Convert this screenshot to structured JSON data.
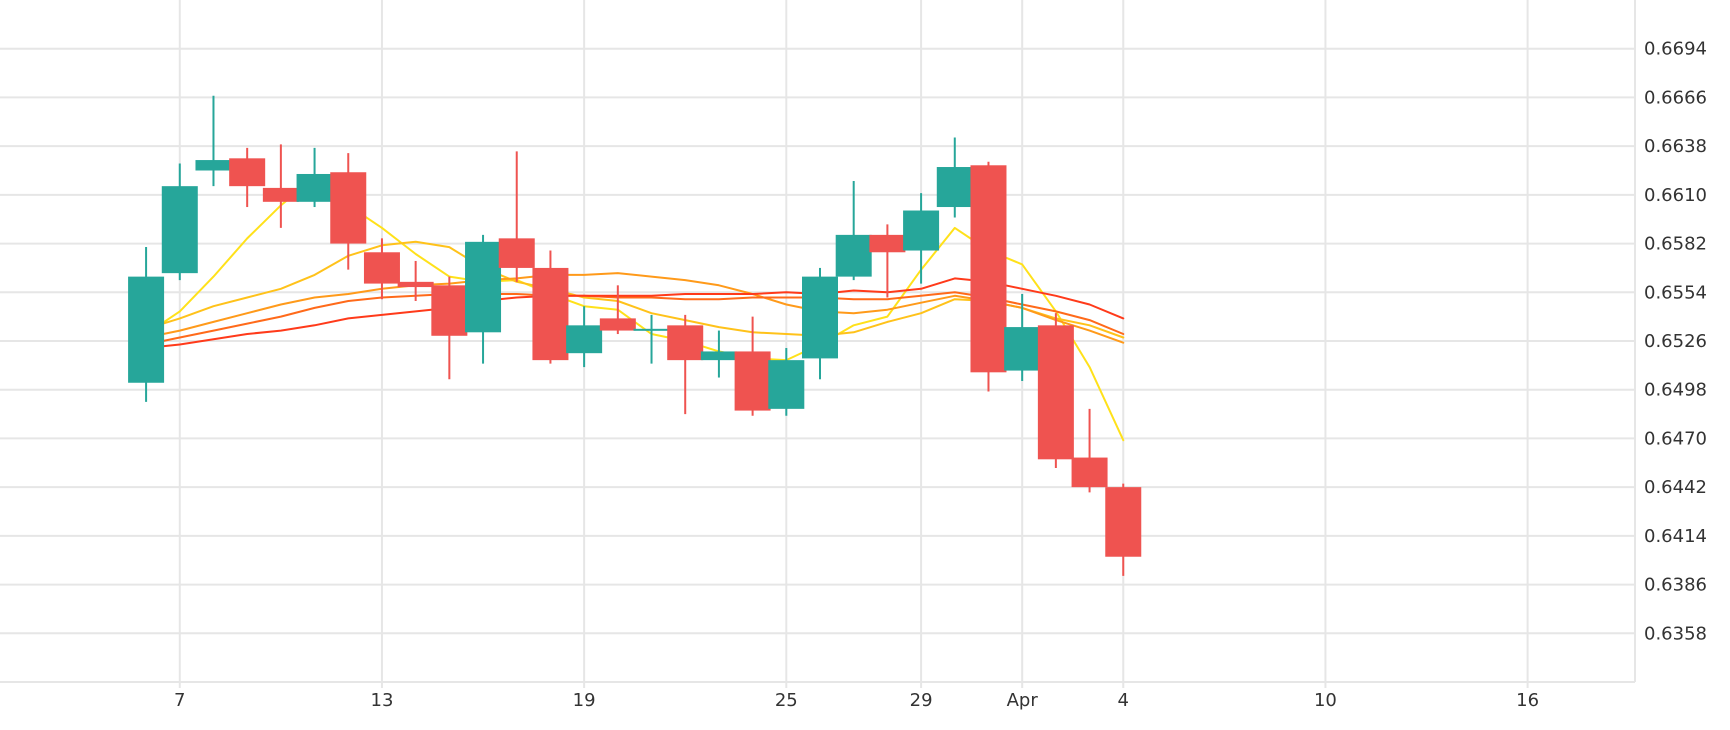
{
  "chart_data": {
    "type": "candlestick",
    "title": "",
    "xlabel": "",
    "ylabel": "",
    "ylim": [
      0.633,
      0.6722
    ],
    "grid": true,
    "y_ticks": [
      0.6358,
      0.6386,
      0.6414,
      0.6442,
      0.647,
      0.6498,
      0.6526,
      0.6554,
      0.6582,
      0.661,
      0.6638,
      0.6666,
      0.6694
    ],
    "y_tick_labels": [
      "0.6358",
      "0.6386",
      "0.6414",
      "0.6442",
      "0.6470",
      "0.6498",
      "0.6526",
      "0.6554",
      "0.6582",
      "0.6610",
      "0.6638",
      "0.6666",
      "0.6694"
    ],
    "x_ticks": [
      {
        "date": "2024-03-07",
        "label": "7"
      },
      {
        "date": "2024-03-13",
        "label": "13"
      },
      {
        "date": "2024-03-19",
        "label": "19"
      },
      {
        "date": "2024-03-25",
        "label": "25"
      },
      {
        "date": "2024-03-29",
        "label": "29"
      },
      {
        "date": "2024-04-01",
        "label": "Apr"
      },
      {
        "date": "2024-04-04",
        "label": "4"
      },
      {
        "date": "2024-04-10",
        "label": "10"
      },
      {
        "date": "2024-04-16",
        "label": "16"
      }
    ],
    "x_range": [
      "2024-03-03",
      "2024-04-18"
    ],
    "colors": {
      "up": "#26a69a",
      "down": "#ef5350",
      "grid": "#e6e6e6"
    },
    "candles": [
      {
        "date": "2024-03-06",
        "open": 0.6502,
        "high": 0.658,
        "low": 0.6491,
        "close": 0.6563
      },
      {
        "date": "2024-03-07",
        "open": 0.6565,
        "high": 0.6628,
        "low": 0.6561,
        "close": 0.6615
      },
      {
        "date": "2024-03-08",
        "open": 0.6624,
        "high": 0.6667,
        "low": 0.6615,
        "close": 0.663
      },
      {
        "date": "2024-03-09",
        "open": 0.6631,
        "high": 0.6637,
        "low": 0.6603,
        "close": 0.6615
      },
      {
        "date": "2024-03-10",
        "open": 0.6614,
        "high": 0.6639,
        "low": 0.6591,
        "close": 0.6606
      },
      {
        "date": "2024-03-11",
        "open": 0.6606,
        "high": 0.6637,
        "low": 0.6603,
        "close": 0.6622
      },
      {
        "date": "2024-03-12",
        "open": 0.6623,
        "high": 0.6634,
        "low": 0.6567,
        "close": 0.6582
      },
      {
        "date": "2024-03-13",
        "open": 0.6577,
        "high": 0.6585,
        "low": 0.655,
        "close": 0.6559
      },
      {
        "date": "2024-03-14",
        "open": 0.656,
        "high": 0.6572,
        "low": 0.6549,
        "close": 0.6557
      },
      {
        "date": "2024-03-15",
        "open": 0.6558,
        "high": 0.6563,
        "low": 0.6504,
        "close": 0.6529
      },
      {
        "date": "2024-03-16",
        "open": 0.6531,
        "high": 0.6587,
        "low": 0.6513,
        "close": 0.6583
      },
      {
        "date": "2024-03-17",
        "open": 0.6585,
        "high": 0.6635,
        "low": 0.656,
        "close": 0.6568
      },
      {
        "date": "2024-03-18",
        "open": 0.6568,
        "high": 0.6578,
        "low": 0.6513,
        "close": 0.6515
      },
      {
        "date": "2024-03-19",
        "open": 0.6519,
        "high": 0.6546,
        "low": 0.6511,
        "close": 0.6535
      },
      {
        "date": "2024-03-20",
        "open": 0.6539,
        "high": 0.6558,
        "low": 0.653,
        "close": 0.6532
      },
      {
        "date": "2024-03-21",
        "open": 0.6533,
        "high": 0.6541,
        "low": 0.6513,
        "close": 0.6533
      },
      {
        "date": "2024-03-22",
        "open": 0.6535,
        "high": 0.6541,
        "low": 0.6484,
        "close": 0.6515
      },
      {
        "date": "2024-03-23",
        "open": 0.6515,
        "high": 0.6532,
        "low": 0.6505,
        "close": 0.652
      },
      {
        "date": "2024-03-24",
        "open": 0.652,
        "high": 0.654,
        "low": 0.6483,
        "close": 0.6486
      },
      {
        "date": "2024-03-25",
        "open": 0.6487,
        "high": 0.6522,
        "low": 0.6483,
        "close": 0.6515
      },
      {
        "date": "2024-03-26",
        "open": 0.6516,
        "high": 0.6568,
        "low": 0.6504,
        "close": 0.6563
      },
      {
        "date": "2024-03-27",
        "open": 0.6563,
        "high": 0.6618,
        "low": 0.6561,
        "close": 0.6587
      },
      {
        "date": "2024-03-28",
        "open": 0.6587,
        "high": 0.6593,
        "low": 0.6551,
        "close": 0.6577
      },
      {
        "date": "2024-03-29",
        "open": 0.6578,
        "high": 0.6611,
        "low": 0.6559,
        "close": 0.6601
      },
      {
        "date": "2024-03-30",
        "open": 0.6603,
        "high": 0.6643,
        "low": 0.6597,
        "close": 0.6626
      },
      {
        "date": "2024-03-31",
        "open": 0.6627,
        "high": 0.6629,
        "low": 0.6497,
        "close": 0.6508
      },
      {
        "date": "2024-04-01",
        "open": 0.6509,
        "high": 0.6553,
        "low": 0.6503,
        "close": 0.6534
      },
      {
        "date": "2024-04-02",
        "open": 0.6535,
        "high": 0.6542,
        "low": 0.6453,
        "close": 0.6458
      },
      {
        "date": "2024-04-03",
        "open": 0.6459,
        "high": 0.6487,
        "low": 0.6439,
        "close": 0.6442
      },
      {
        "date": "2024-04-04",
        "open": 0.6442,
        "high": 0.6444,
        "low": 0.6391,
        "close": 0.6402
      }
    ],
    "series": [
      {
        "color": "#ffe11a",
        "x": [
          "2024-03-06",
          "2024-03-07",
          "2024-03-08",
          "2024-03-09",
          "2024-03-10",
          "2024-03-11",
          "2024-03-12",
          "2024-03-13",
          "2024-03-14",
          "2024-03-15",
          "2024-03-16",
          "2024-03-17",
          "2024-03-18",
          "2024-03-19",
          "2024-03-20",
          "2024-03-21",
          "2024-03-22",
          "2024-03-23",
          "2024-03-24",
          "2024-03-25",
          "2024-03-26",
          "2024-03-27",
          "2024-03-28",
          "2024-03-29",
          "2024-03-30",
          "2024-03-31",
          "2024-04-01",
          "2024-04-02",
          "2024-04-03",
          "2024-04-04"
        ],
        "y": [
          0.653,
          0.6543,
          0.6563,
          0.6585,
          0.6604,
          0.662,
          0.6604,
          0.6591,
          0.6576,
          0.6563,
          0.656,
          0.6561,
          0.6553,
          0.6546,
          0.6544,
          0.653,
          0.6526,
          0.652,
          0.6516,
          0.6515,
          0.6524,
          0.6535,
          0.654,
          0.6567,
          0.6591,
          0.6578,
          0.657,
          0.6543,
          0.6511,
          0.6469
        ]
      },
      {
        "color": "#ffc21a",
        "x": [
          "2024-03-06",
          "2024-03-07",
          "2024-03-08",
          "2024-03-09",
          "2024-03-10",
          "2024-03-11",
          "2024-03-12",
          "2024-03-13",
          "2024-03-14",
          "2024-03-15",
          "2024-03-16",
          "2024-03-17",
          "2024-03-18",
          "2024-03-19",
          "2024-03-20",
          "2024-03-21",
          "2024-03-22",
          "2024-03-23",
          "2024-03-24",
          "2024-03-25",
          "2024-03-26",
          "2024-03-27",
          "2024-03-28",
          "2024-03-29",
          "2024-03-30",
          "2024-03-31",
          "2024-04-01",
          "2024-04-02",
          "2024-04-03",
          "2024-04-04"
        ],
        "y": [
          0.6533,
          0.6539,
          0.6546,
          0.6551,
          0.6556,
          0.6564,
          0.6575,
          0.6581,
          0.6583,
          0.658,
          0.6568,
          0.656,
          0.6556,
          0.6551,
          0.6549,
          0.6542,
          0.6538,
          0.6534,
          0.6531,
          0.653,
          0.6529,
          0.6531,
          0.6537,
          0.6542,
          0.655,
          0.6549,
          0.6545,
          0.6539,
          0.6535,
          0.6528
        ]
      },
      {
        "color": "#ff9a1a",
        "x": [
          "2024-03-06",
          "2024-03-07",
          "2024-03-08",
          "2024-03-09",
          "2024-03-10",
          "2024-03-11",
          "2024-03-12",
          "2024-03-13",
          "2024-03-14",
          "2024-03-15",
          "2024-03-16",
          "2024-03-17",
          "2024-03-18",
          "2024-03-19",
          "2024-03-20",
          "2024-03-21",
          "2024-03-22",
          "2024-03-23",
          "2024-03-24",
          "2024-03-25",
          "2024-03-26",
          "2024-03-27",
          "2024-03-28",
          "2024-03-29",
          "2024-03-30",
          "2024-03-31",
          "2024-04-01",
          "2024-04-02",
          "2024-04-03",
          "2024-04-04"
        ],
        "y": [
          0.6528,
          0.6532,
          0.6537,
          0.6542,
          0.6547,
          0.6551,
          0.6553,
          0.6556,
          0.6558,
          0.6559,
          0.6561,
          0.6562,
          0.6564,
          0.6564,
          0.6565,
          0.6563,
          0.6561,
          0.6558,
          0.6553,
          0.6547,
          0.6543,
          0.6542,
          0.6544,
          0.6548,
          0.6552,
          0.6549,
          0.6545,
          0.6538,
          0.6532,
          0.6525
        ]
      },
      {
        "color": "#ff6a1a",
        "x": [
          "2024-03-06",
          "2024-03-07",
          "2024-03-08",
          "2024-03-09",
          "2024-03-10",
          "2024-03-11",
          "2024-03-12",
          "2024-03-13",
          "2024-03-14",
          "2024-03-15",
          "2024-03-16",
          "2024-03-17",
          "2024-03-18",
          "2024-03-19",
          "2024-03-20",
          "2024-03-21",
          "2024-03-22",
          "2024-03-23",
          "2024-03-24",
          "2024-03-25",
          "2024-03-26",
          "2024-03-27",
          "2024-03-28",
          "2024-03-29",
          "2024-03-30",
          "2024-03-31",
          "2024-04-01",
          "2024-04-02",
          "2024-04-03",
          "2024-04-04"
        ],
        "y": [
          0.6524,
          0.6528,
          0.6532,
          0.6536,
          0.654,
          0.6545,
          0.6549,
          0.6551,
          0.6552,
          0.6553,
          0.6553,
          0.6553,
          0.6552,
          0.6552,
          0.6551,
          0.6551,
          0.655,
          0.655,
          0.6551,
          0.6551,
          0.6551,
          0.655,
          0.655,
          0.6552,
          0.6554,
          0.6551,
          0.6547,
          0.6543,
          0.6538,
          0.653
        ]
      },
      {
        "color": "#ff3a1a",
        "x": [
          "2024-03-06",
          "2024-03-07",
          "2024-03-08",
          "2024-03-09",
          "2024-03-10",
          "2024-03-11",
          "2024-03-12",
          "2024-03-13",
          "2024-03-14",
          "2024-03-15",
          "2024-03-16",
          "2024-03-17",
          "2024-03-18",
          "2024-03-19",
          "2024-03-20",
          "2024-03-21",
          "2024-03-22",
          "2024-03-23",
          "2024-03-24",
          "2024-03-25",
          "2024-03-26",
          "2024-03-27",
          "2024-03-28",
          "2024-03-29",
          "2024-03-30",
          "2024-03-31",
          "2024-04-01",
          "2024-04-02",
          "2024-04-03",
          "2024-04-04"
        ],
        "y": [
          0.6522,
          0.6524,
          0.6527,
          0.653,
          0.6532,
          0.6535,
          0.6539,
          0.6541,
          0.6543,
          0.6545,
          0.6549,
          0.6551,
          0.6552,
          0.6552,
          0.6552,
          0.6552,
          0.6553,
          0.6553,
          0.6553,
          0.6554,
          0.6553,
          0.6555,
          0.6554,
          0.6556,
          0.6562,
          0.656,
          0.6556,
          0.6552,
          0.6547,
          0.6539
        ]
      }
    ]
  }
}
